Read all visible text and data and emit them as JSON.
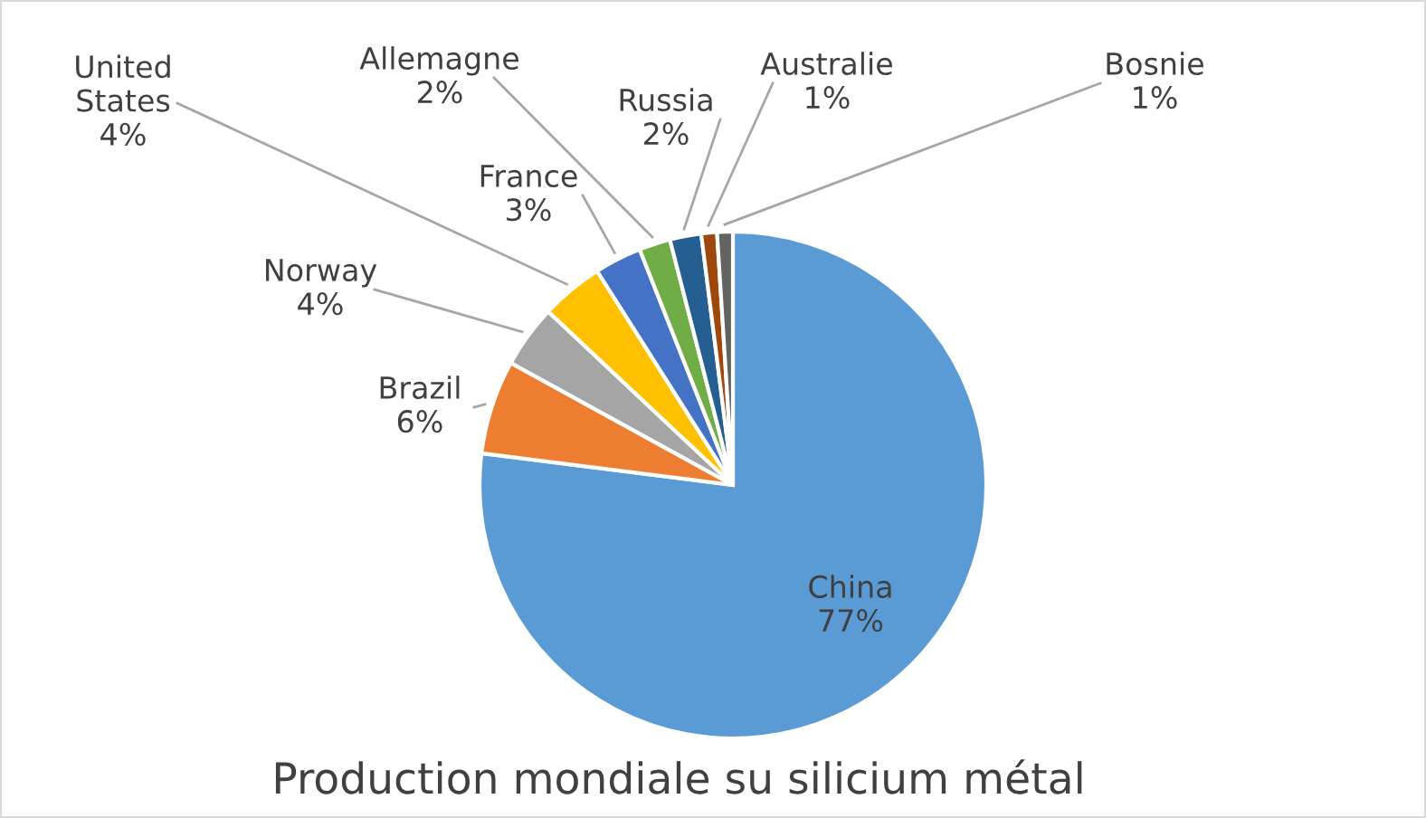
{
  "chart_data": {
    "type": "pie",
    "title": "Production mondiale su silicium métal",
    "categories": [
      "China",
      "Brazil",
      "Norway",
      "United\nStates",
      "France",
      "Allemagne",
      "Russia",
      "Australie",
      "Bosnie"
    ],
    "values": [
      77,
      6,
      4,
      4,
      3,
      2,
      2,
      1,
      1
    ],
    "colors": [
      "#5b9bd5",
      "#ed7d31",
      "#a5a5a5",
      "#ffc000",
      "#4472c4",
      "#70ad47",
      "#255e91",
      "#9e480e",
      "#636363"
    ],
    "value_labels": [
      "77%",
      "6%",
      "4%",
      "4%",
      "3%",
      "2%",
      "2%",
      "1%",
      "1%"
    ],
    "legend": false
  }
}
